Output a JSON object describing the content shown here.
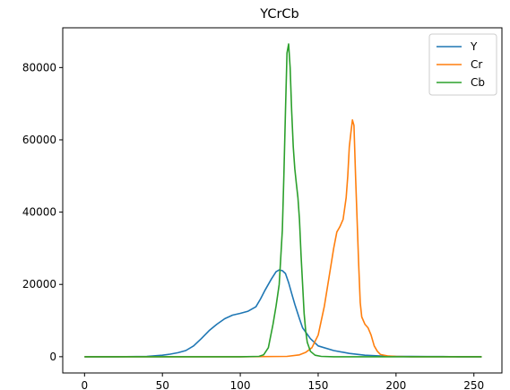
{
  "chart_data": {
    "type": "line",
    "title": "YCrCb",
    "xlabel": "",
    "ylabel": "",
    "xlim": [
      -14,
      268
    ],
    "ylim": [
      -4500,
      91000
    ],
    "xticks": [
      0,
      50,
      100,
      150,
      200,
      250
    ],
    "yticks": [
      0,
      20000,
      40000,
      60000,
      80000
    ],
    "grid": false,
    "legend_position": "top-right",
    "series": [
      {
        "name": "Y",
        "color": "#1f77b4",
        "x": [
          0,
          20,
          40,
          50,
          55,
          60,
          65,
          70,
          75,
          80,
          85,
          90,
          95,
          100,
          105,
          110,
          113,
          116,
          120,
          123,
          125,
          127,
          129,
          131,
          133,
          135,
          138,
          140,
          145,
          150,
          160,
          170,
          180,
          190,
          200,
          210,
          220,
          230,
          240,
          255
        ],
        "y": [
          0,
          0,
          100,
          400,
          700,
          1100,
          1700,
          3000,
          5000,
          7200,
          9000,
          10500,
          11500,
          12000,
          12600,
          13800,
          16000,
          18500,
          21500,
          23500,
          24000,
          23800,
          23000,
          20500,
          17500,
          14500,
          10500,
          8000,
          5000,
          3000,
          1700,
          900,
          400,
          200,
          100,
          100,
          50,
          50,
          0,
          0
        ]
      },
      {
        "name": "Cr",
        "color": "#ff7f0e",
        "x": [
          0,
          100,
          130,
          138,
          142,
          146,
          150,
          154,
          157,
          160,
          162,
          164,
          166,
          168,
          169,
          170,
          171,
          172,
          173,
          174,
          175,
          176,
          177,
          178,
          180,
          182,
          184,
          186,
          188,
          190,
          195,
          200,
          210,
          255
        ],
        "y": [
          0,
          0,
          100,
          500,
          1200,
          2500,
          6000,
          14000,
          22000,
          30000,
          34500,
          36000,
          38000,
          44000,
          50000,
          58000,
          62000,
          65500,
          64000,
          50000,
          38000,
          26000,
          15000,
          11000,
          9000,
          8000,
          6000,
          3000,
          1500,
          600,
          200,
          100,
          0,
          0
        ]
      },
      {
        "name": "Cb",
        "color": "#2ca02c",
        "x": [
          0,
          100,
          112,
          115,
          118,
          121,
          123,
          125,
          127,
          128,
          129,
          130,
          131,
          132,
          133,
          134,
          135,
          136,
          137,
          138,
          139,
          140,
          141,
          142,
          143,
          145,
          148,
          152,
          160,
          180,
          255
        ],
        "y": [
          0,
          0,
          100,
          500,
          2500,
          9000,
          14000,
          20000,
          35000,
          50000,
          68000,
          84000,
          86500,
          80000,
          68000,
          58000,
          52000,
          48000,
          44000,
          38000,
          28000,
          20000,
          12000,
          7000,
          4000,
          1500,
          400,
          100,
          0,
          0,
          0
        ]
      }
    ]
  }
}
